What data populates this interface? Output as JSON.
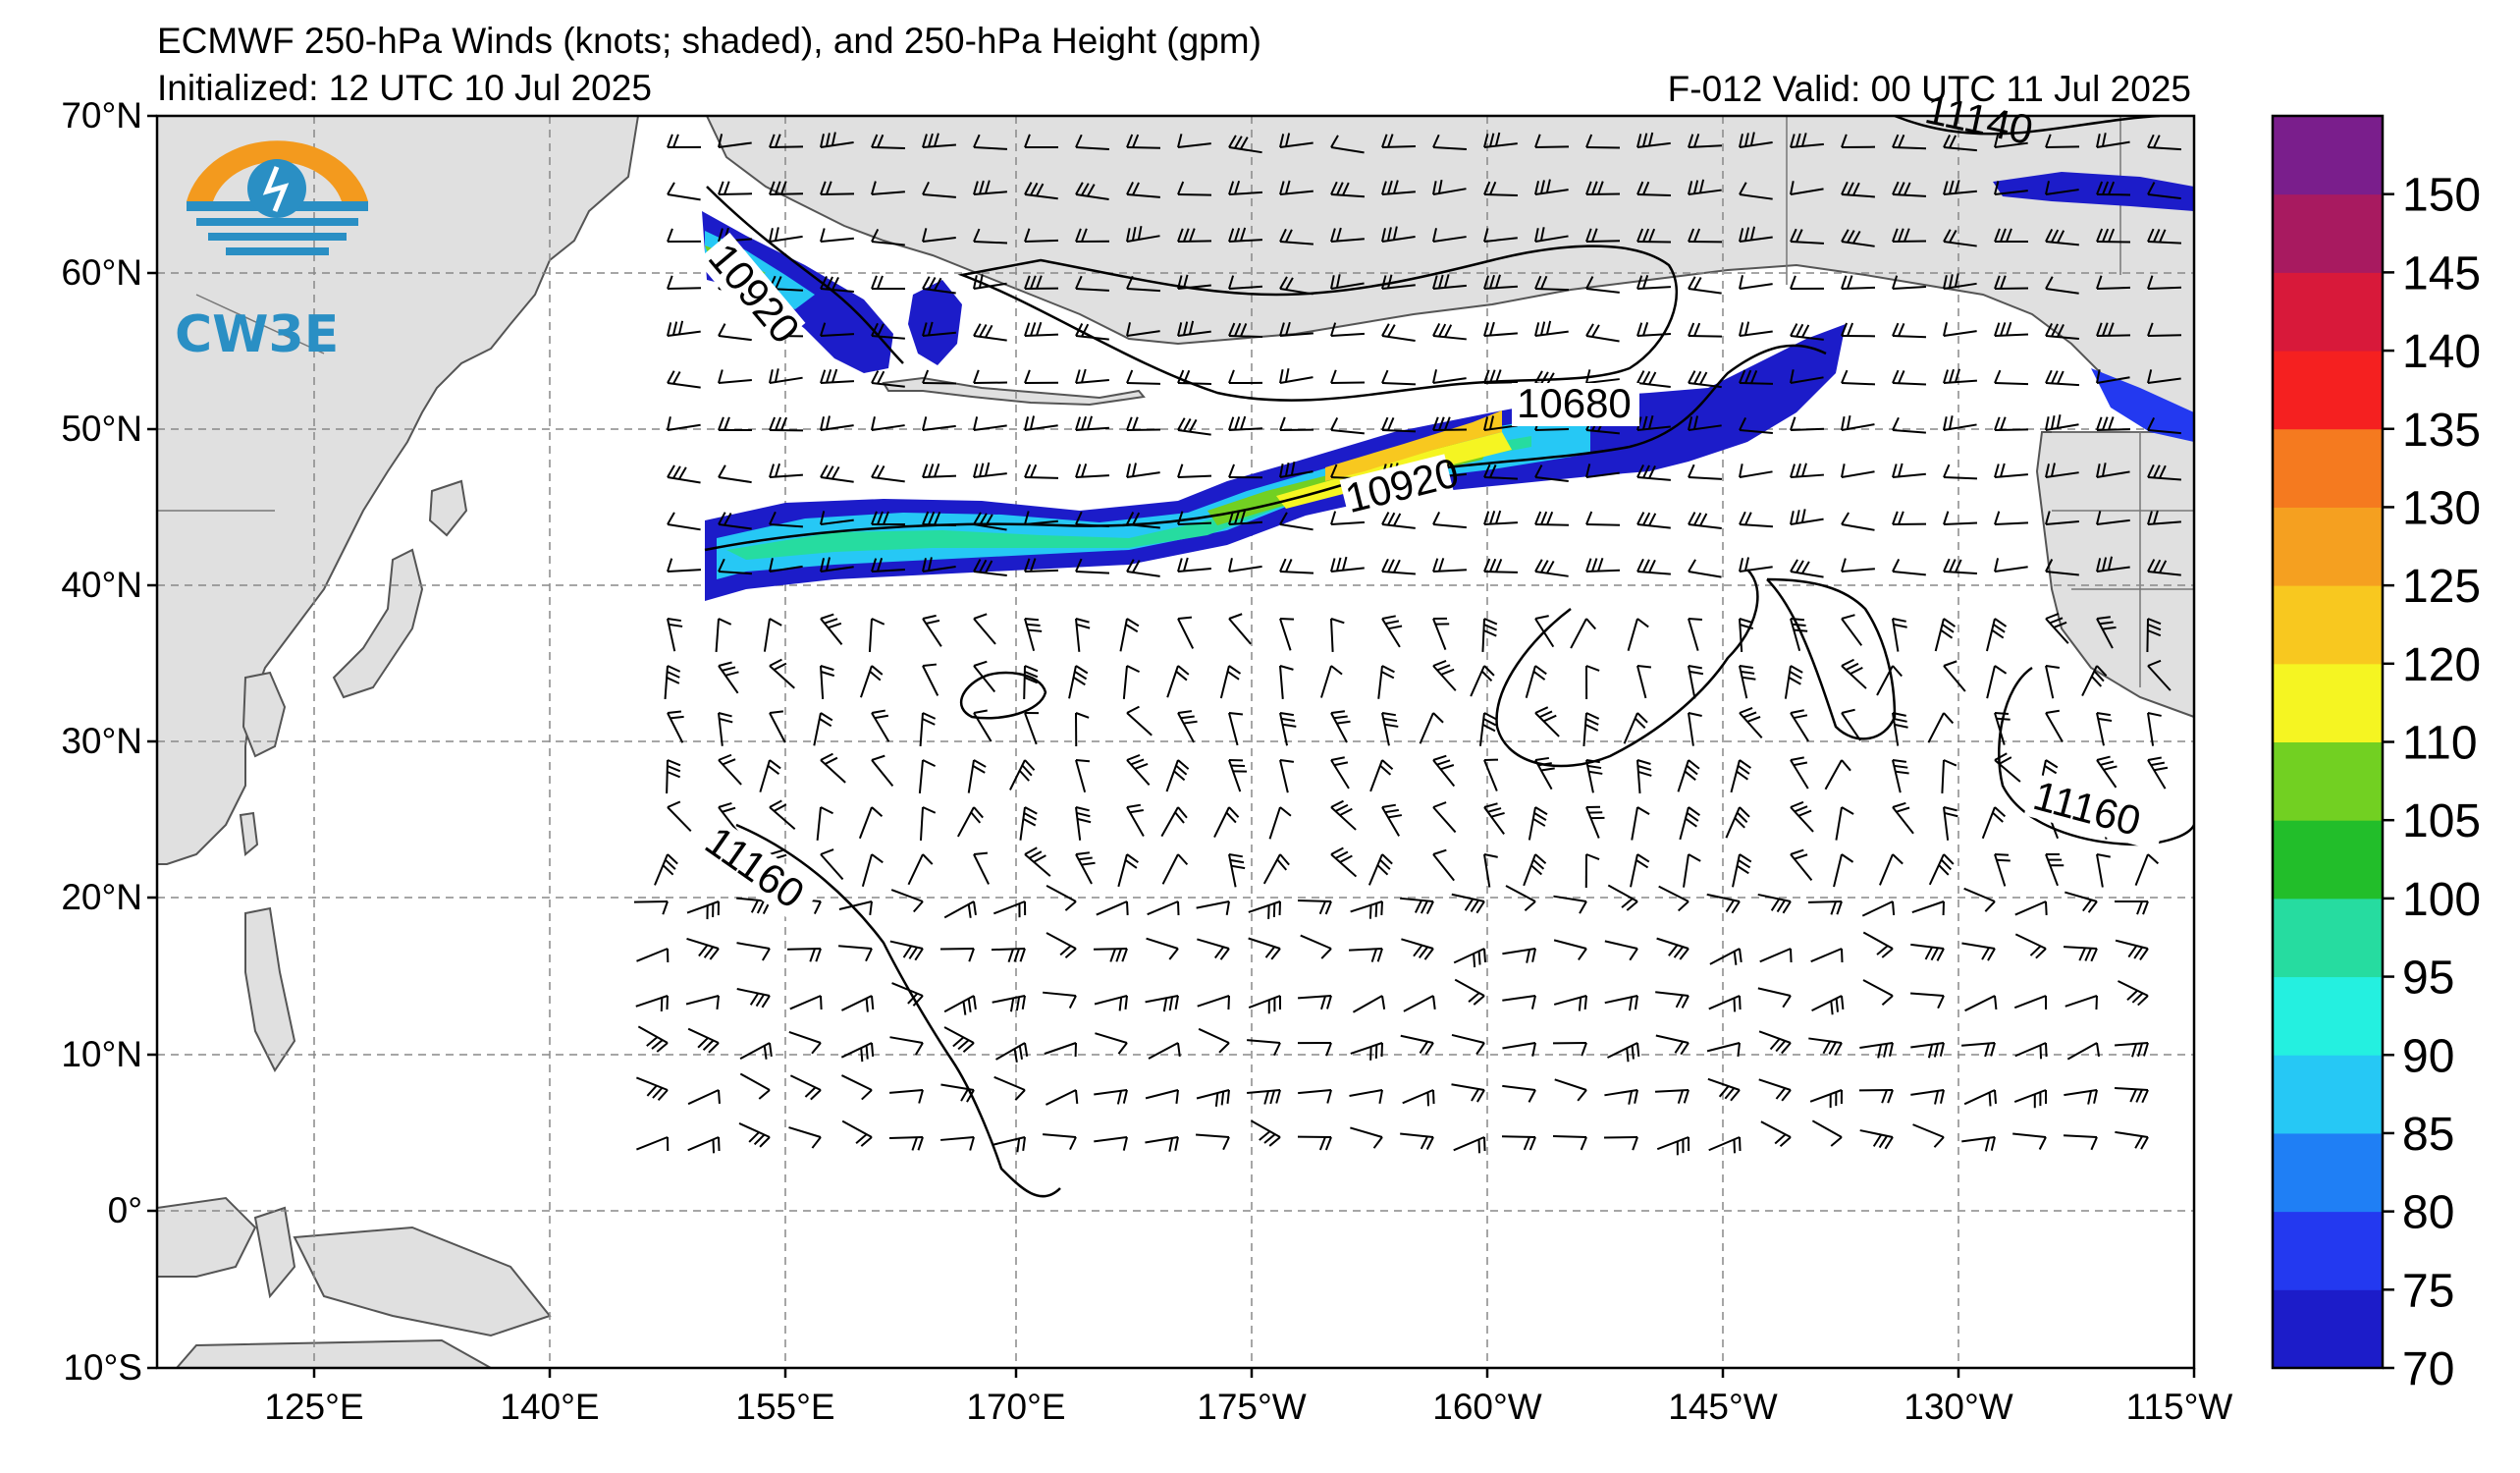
{
  "header": {
    "title": "ECMWF 250-hPa Winds (knots; shaded), and 250-hPa Height (gpm)",
    "initialized": "Initialized: 12 UTC 10 Jul 2025",
    "valid": "F-012  Valid: 00 UTC 11 Jul 2025"
  },
  "logo": {
    "text": "CW3E",
    "colors": {
      "ring": "#f39a1e",
      "water": "#2a8fc4"
    }
  },
  "map": {
    "lat_labels": [
      "70°N",
      "60°N",
      "50°N",
      "40°N",
      "30°N",
      "20°N",
      "10°N",
      "0°",
      "10°S"
    ],
    "lon_labels": [
      "125°E",
      "140°E",
      "155°E",
      "170°E",
      "175°W",
      "160°W",
      "145°W",
      "130°W",
      "115°W"
    ],
    "contour_labels": [
      "10920",
      "10680",
      "10920",
      "11160",
      "11160",
      "11140"
    ],
    "land_color": "#e0e0e0"
  },
  "colorbar": {
    "labels": [
      "150",
      "145",
      "140",
      "135",
      "130",
      "125",
      "120",
      "110",
      "105",
      "100",
      "95",
      "90",
      "85",
      "80",
      "75",
      "70"
    ],
    "colors": [
      "#1c1cc9",
      "#2339f0",
      "#1f7ff5",
      "#26c8f5",
      "#24f0e0",
      "#26dca0",
      "#22be2a",
      "#72d022",
      "#f5f522",
      "#f8c81f",
      "#f5a020",
      "#f57a1f",
      "#f52020",
      "#d8193a",
      "#a81a60",
      "#7a1e8c"
    ]
  }
}
